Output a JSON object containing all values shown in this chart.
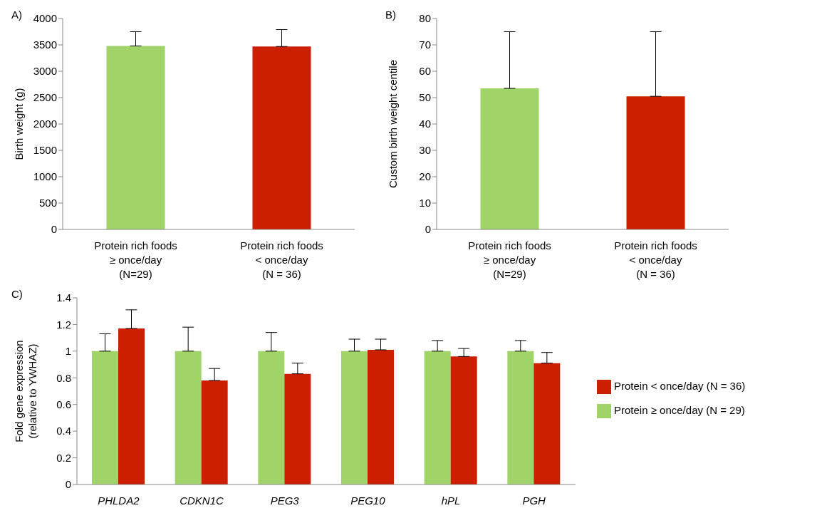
{
  "chart_data": [
    {
      "type": "bar",
      "title": "A)",
      "ylabel": "Birth weight (g)",
      "categories": [
        "Protein rich foods\n≥ once/day\n(N=29)",
        "Protein rich foods\n< once/day\n(N = 36)"
      ],
      "values": [
        3480,
        3470
      ],
      "colors": [
        "#a0d468",
        "#cc1f00"
      ],
      "errors": [
        [
          3480,
          3750
        ],
        [
          3470,
          3790
        ]
      ],
      "ylim": [
        0,
        4000
      ],
      "yticks": [
        0,
        500,
        1000,
        1500,
        2000,
        2500,
        3000,
        3500,
        4000
      ],
      "grid": false,
      "legend": false
    },
    {
      "type": "bar",
      "title": "B)",
      "ylabel": "Custom birth weight centile",
      "categories": [
        "Protein rich foods\n≥ once/day\n(N=29)",
        "Protein rich foods\n< once/day\n(N = 36)"
      ],
      "values": [
        53.5,
        50.5
      ],
      "colors": [
        "#a0d468",
        "#cc1f00"
      ],
      "errors": [
        [
          53.5,
          75
        ],
        [
          50.5,
          75
        ]
      ],
      "ylim": [
        0,
        80
      ],
      "yticks": [
        0,
        10,
        20,
        30,
        40,
        50,
        60,
        70,
        80
      ],
      "grid": false,
      "legend": false
    },
    {
      "type": "bar",
      "title": "C)",
      "ylabel": "Fold gene expression\n(relative to YWHAZ)",
      "categories": [
        "PHLDA2",
        "CDKN1C",
        "PEG3",
        "PEG10",
        "hPL",
        "PGH"
      ],
      "series": [
        {
          "name": "Protein ≥ once/day (N = 29)",
          "color": "#a0d468",
          "values": [
            1,
            1,
            1,
            1,
            1,
            1
          ],
          "errors": [
            [
              1,
              1.13
            ],
            [
              1,
              1.18
            ],
            [
              1,
              1.14
            ],
            [
              1,
              1.09
            ],
            [
              1,
              1.08
            ],
            [
              1,
              1.08
            ]
          ]
        },
        {
          "name": "Protein < once/day (N = 36)",
          "color": "#cc1f00",
          "values": [
            1.17,
            0.78,
            0.83,
            1.01,
            0.96,
            0.91
          ],
          "errors": [
            [
              1.17,
              1.31
            ],
            [
              0.78,
              0.87
            ],
            [
              0.83,
              0.91
            ],
            [
              1.01,
              1.09
            ],
            [
              0.96,
              1.02
            ],
            [
              0.91,
              0.99
            ]
          ]
        }
      ],
      "ylim": [
        0,
        1.4
      ],
      "yticks": [
        0,
        0.2,
        0.4,
        0.6,
        0.8,
        1,
        1.2,
        1.4
      ],
      "grid": false,
      "legend": "right"
    }
  ]
}
